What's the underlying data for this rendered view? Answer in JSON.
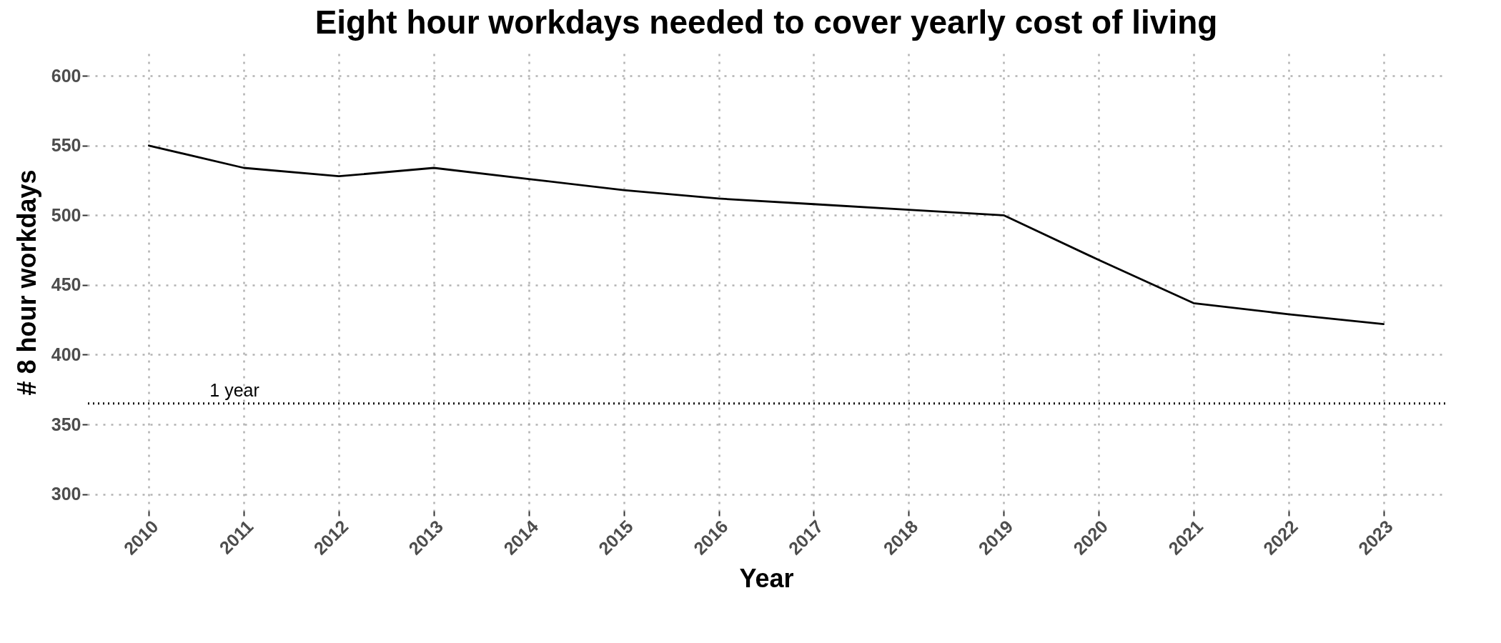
{
  "chart_data": {
    "type": "line",
    "title": "Eight hour workdays needed to cover yearly cost of living",
    "xlabel": "Year",
    "ylabel": "# 8 hour workdays",
    "categories": [
      "2010",
      "2011",
      "2012",
      "2013",
      "2014",
      "2015",
      "2016",
      "2017",
      "2018",
      "2019",
      "2020",
      "2021",
      "2022",
      "2023"
    ],
    "series": [
      {
        "color": "#000000",
        "values": [
          550,
          534,
          528,
          534,
          526,
          518,
          512,
          508,
          504,
          500,
          468,
          437,
          429,
          422
        ]
      }
    ],
    "ylim": [
      288,
      616
    ],
    "yticks": [
      300,
      350,
      400,
      450,
      500,
      550,
      600
    ],
    "grid": true,
    "legend": false,
    "marker": "none",
    "line_style": "solid",
    "ref_lines": [
      {
        "axis": "y",
        "value": 365,
        "label": "1 year",
        "color": "#000000",
        "line_style": "dotted"
      }
    ]
  }
}
